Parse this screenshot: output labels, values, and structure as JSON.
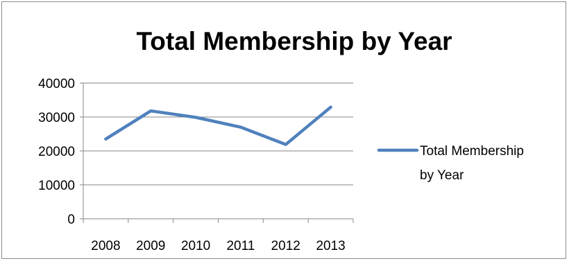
{
  "chart_data": {
    "type": "line",
    "title": "Total Membership by Year",
    "xlabel": "",
    "ylabel": "",
    "categories": [
      "2008",
      "2009",
      "2010",
      "2011",
      "2012",
      "2013"
    ],
    "series": [
      {
        "name": "Total Membership by Year",
        "values": [
          23500,
          31800,
          29900,
          27000,
          21900,
          32900
        ],
        "color": "#4f81bd"
      }
    ],
    "ylim": [
      0,
      40000
    ],
    "yticks": [
      0,
      10000,
      20000,
      30000,
      40000
    ],
    "grid": "horizontal",
    "legend_position": "right",
    "legend": {
      "lines": [
        "Total Membership",
        "by Year"
      ]
    }
  }
}
